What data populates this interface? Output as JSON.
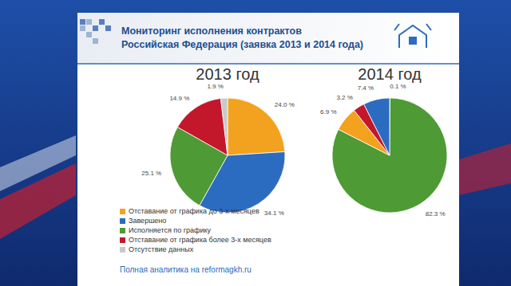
{
  "header": {
    "title": [
      "Мониторинг исполнения контрактов",
      "Российская Федерация (заявка 2013 и 2014 года)"
    ],
    "footer": "Полная аналитика на reformagkh.ru"
  },
  "chart_data": [
    {
      "type": "pie",
      "title": "2013 год",
      "categories": [
        "Отставание от графика до 3-х месяцев",
        "Завершено",
        "Исполняется по графику",
        "Отставание от графика более 3-х месяцев",
        "Отсутствие данных"
      ],
      "values": [
        24.0,
        34.1,
        25.1,
        14.9,
        1.9
      ],
      "value_labels": [
        "24.0 %",
        "34.1 %",
        "25.1 %",
        "14.9 %",
        "1.9 %"
      ],
      "colors": [
        "#f3a21f",
        "#2c6cc0",
        "#4e9a34",
        "#c3172c",
        "#c9c9c9"
      ],
      "data_labels": true,
      "legend": "bottom-left"
    },
    {
      "type": "pie",
      "title": "2014 год",
      "categories": [
        "Отсутствие данных",
        "Исполняется по графику",
        "Отставание от графика до 3-х месяцев",
        "Отставание от графика более 3-х месяцев",
        "Завершено"
      ],
      "values": [
        0.1,
        82.3,
        6.9,
        3.2,
        7.4
      ],
      "value_labels": [
        "0.1 %",
        "82.3 %",
        "6.9 %",
        "3.2 %",
        "7.4 %"
      ],
      "colors": [
        "#c9c9c9",
        "#4e9a34",
        "#f3a21f",
        "#c3172c",
        "#2c6cc0"
      ],
      "data_labels": true
    }
  ]
}
